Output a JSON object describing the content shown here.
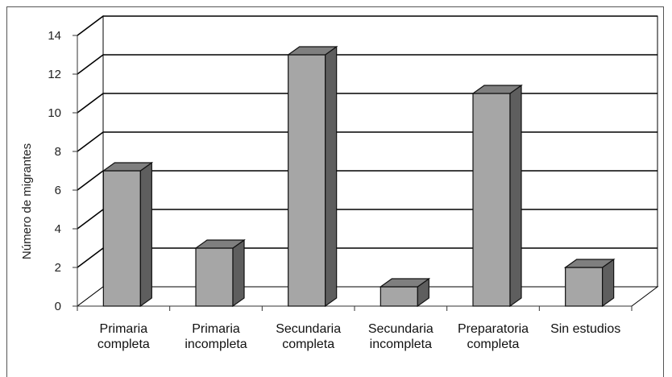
{
  "chart_data": {
    "type": "bar",
    "style": "3d",
    "title": "",
    "ylabel": "Número de migrantes",
    "xlabel": "",
    "ylim": [
      0,
      14
    ],
    "y_ticks": [
      0,
      2,
      4,
      6,
      8,
      10,
      12,
      14
    ],
    "grid": true,
    "categories": [
      [
        "Primaria",
        "completa"
      ],
      [
        "Primaria",
        "incompleta"
      ],
      [
        "Secundaria",
        "completa"
      ],
      [
        "Secundaria",
        "incompleta"
      ],
      [
        "Preparatoria",
        "completa"
      ],
      [
        "Sin estudios"
      ]
    ],
    "values": [
      7,
      3,
      13,
      1,
      11,
      2
    ],
    "colors": {
      "bar_front": "#a6a6a6",
      "bar_side": "#5e5e5e",
      "bar_top": "#7f7f7f",
      "outline": "#111111",
      "grid": "#000000"
    }
  }
}
